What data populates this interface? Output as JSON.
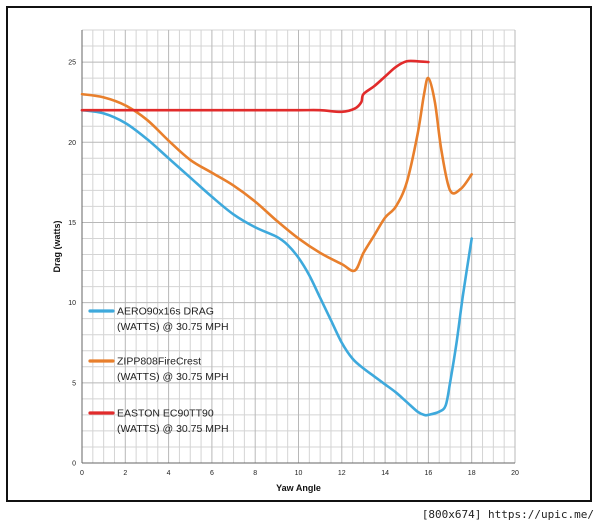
{
  "watermark": "[800x674] https://upic.me/",
  "chart_data": {
    "type": "line",
    "xlabel": "Yaw Angle",
    "ylabel": "Drag (watts)",
    "xlim": [
      0,
      20
    ],
    "ylim": [
      0,
      27
    ],
    "xticks": [
      0,
      2,
      4,
      6,
      8,
      10,
      12,
      14,
      16,
      18,
      20
    ],
    "yticks": [
      0,
      5,
      10,
      15,
      20,
      25
    ],
    "grid": true,
    "legend_position": "bottom-left",
    "series": [
      {
        "name": "AERO90x16s DRAG",
        "name_line2": "(WATTS) @ 30.75 MPH",
        "color": "#3ea9dc",
        "x": [
          0,
          1,
          2,
          3,
          4,
          5,
          6,
          7,
          8,
          9,
          9.5,
          10,
          10.5,
          11,
          11.5,
          12,
          12.5,
          13,
          13.5,
          14,
          14.5,
          15,
          15.5,
          15.8,
          16,
          16.5,
          16.8,
          17,
          17.3,
          17.6,
          18
        ],
        "y": [
          22,
          21.8,
          21.2,
          20.2,
          19,
          17.8,
          16.6,
          15.5,
          14.7,
          14.1,
          13.6,
          12.8,
          11.7,
          10.3,
          8.9,
          7.5,
          6.5,
          5.9,
          5.4,
          4.9,
          4.4,
          3.8,
          3.2,
          3.0,
          3.0,
          3.2,
          3.6,
          5.0,
          7.5,
          10.5,
          14
        ]
      },
      {
        "name": "ZIPP808FireCrest",
        "name_line2": "(WATTS) @ 30.75 MPH",
        "color": "#e87f2c",
        "x": [
          0,
          1,
          2,
          3,
          4,
          5,
          6,
          7,
          8,
          9,
          10,
          11,
          12,
          12.6,
          13,
          13.5,
          14,
          14.5,
          15,
          15.5,
          15.8,
          16,
          16.3,
          16.6,
          17,
          17.5,
          18
        ],
        "y": [
          23,
          22.8,
          22.3,
          21.4,
          20.1,
          18.9,
          18.1,
          17.3,
          16.3,
          15.1,
          14,
          13.1,
          12.4,
          12,
          13.1,
          14.2,
          15.3,
          16,
          17.5,
          20.5,
          23,
          24,
          22.5,
          19.5,
          17,
          17.1,
          18
        ]
      },
      {
        "name": "EASTON EC90TT90",
        "name_line2": "(WATTS) @ 30.75 MPH",
        "color": "#e12b2b",
        "x": [
          0,
          2,
          4,
          6,
          8,
          10,
          11,
          12,
          12.6,
          12.9,
          13,
          13.5,
          14,
          14.5,
          15,
          15.5,
          16
        ],
        "y": [
          22,
          22,
          22,
          22,
          22,
          22,
          22,
          21.9,
          22.1,
          22.5,
          23,
          23.5,
          24.1,
          24.7,
          25.05,
          25.05,
          25
        ]
      }
    ]
  }
}
